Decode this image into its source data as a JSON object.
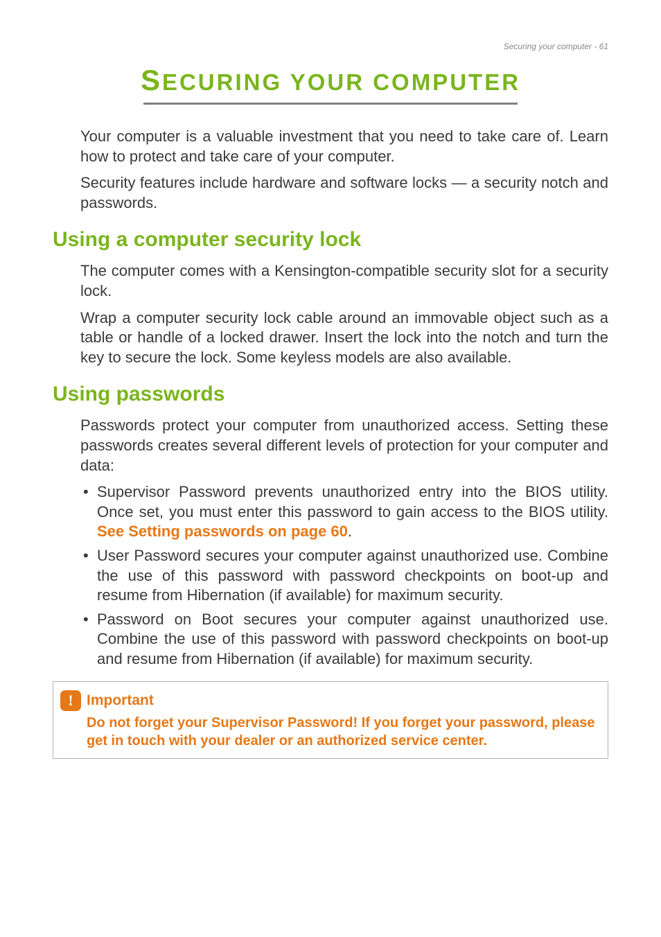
{
  "header": {
    "running_head": "Securing your computer - 61"
  },
  "title": {
    "first_letter": "S",
    "rest": "ECURING YOUR COMPUTER"
  },
  "colors": {
    "accent_green": "#7ab51d",
    "accent_orange": "#e67817",
    "body_text": "#3a3a3a",
    "underline": "#808080",
    "callout_border": "#b0b0b0",
    "background": "#ffffff"
  },
  "intro": {
    "para1": "Your computer is a valuable investment that you need to take care of. Learn how to protect and take care of your computer.",
    "para2": "Security features include hardware and software locks — a security notch and passwords."
  },
  "section1": {
    "heading": "Using a computer security lock",
    "para1": "The computer comes with a Kensington-compatible security slot for a security lock.",
    "para2": "Wrap a computer security lock cable around an immovable object such as a table or handle of a locked drawer. Insert the lock into the notch and turn the key to secure the lock. Some keyless models are also available."
  },
  "section2": {
    "heading": "Using passwords",
    "intro": "Passwords protect your computer from unauthorized access. Setting these passwords creates several different levels of protection for your computer and data:",
    "bullets": {
      "b1_pre": "Supervisor Password prevents unauthorized entry into the BIOS utility. Once set, you must enter this password to gain access to the BIOS utility. ",
      "b1_link": "See Setting passwords on page 60",
      "b1_post": ".",
      "b2": "User Password secures your computer against unauthorized use. Combine the use of this password with password checkpoints on boot-up and resume from Hibernation (if available) for maximum security.",
      "b3": "Password on Boot secures your computer against unauthorized use. Combine the use of this password with password checkpoints on boot-up and resume from Hibernation (if available) for maximum security."
    }
  },
  "callout": {
    "icon_glyph": "!",
    "title": "Important",
    "body": "Do not forget your Supervisor Password! If you forget your password, please get in touch with your dealer or an authorized service center."
  }
}
